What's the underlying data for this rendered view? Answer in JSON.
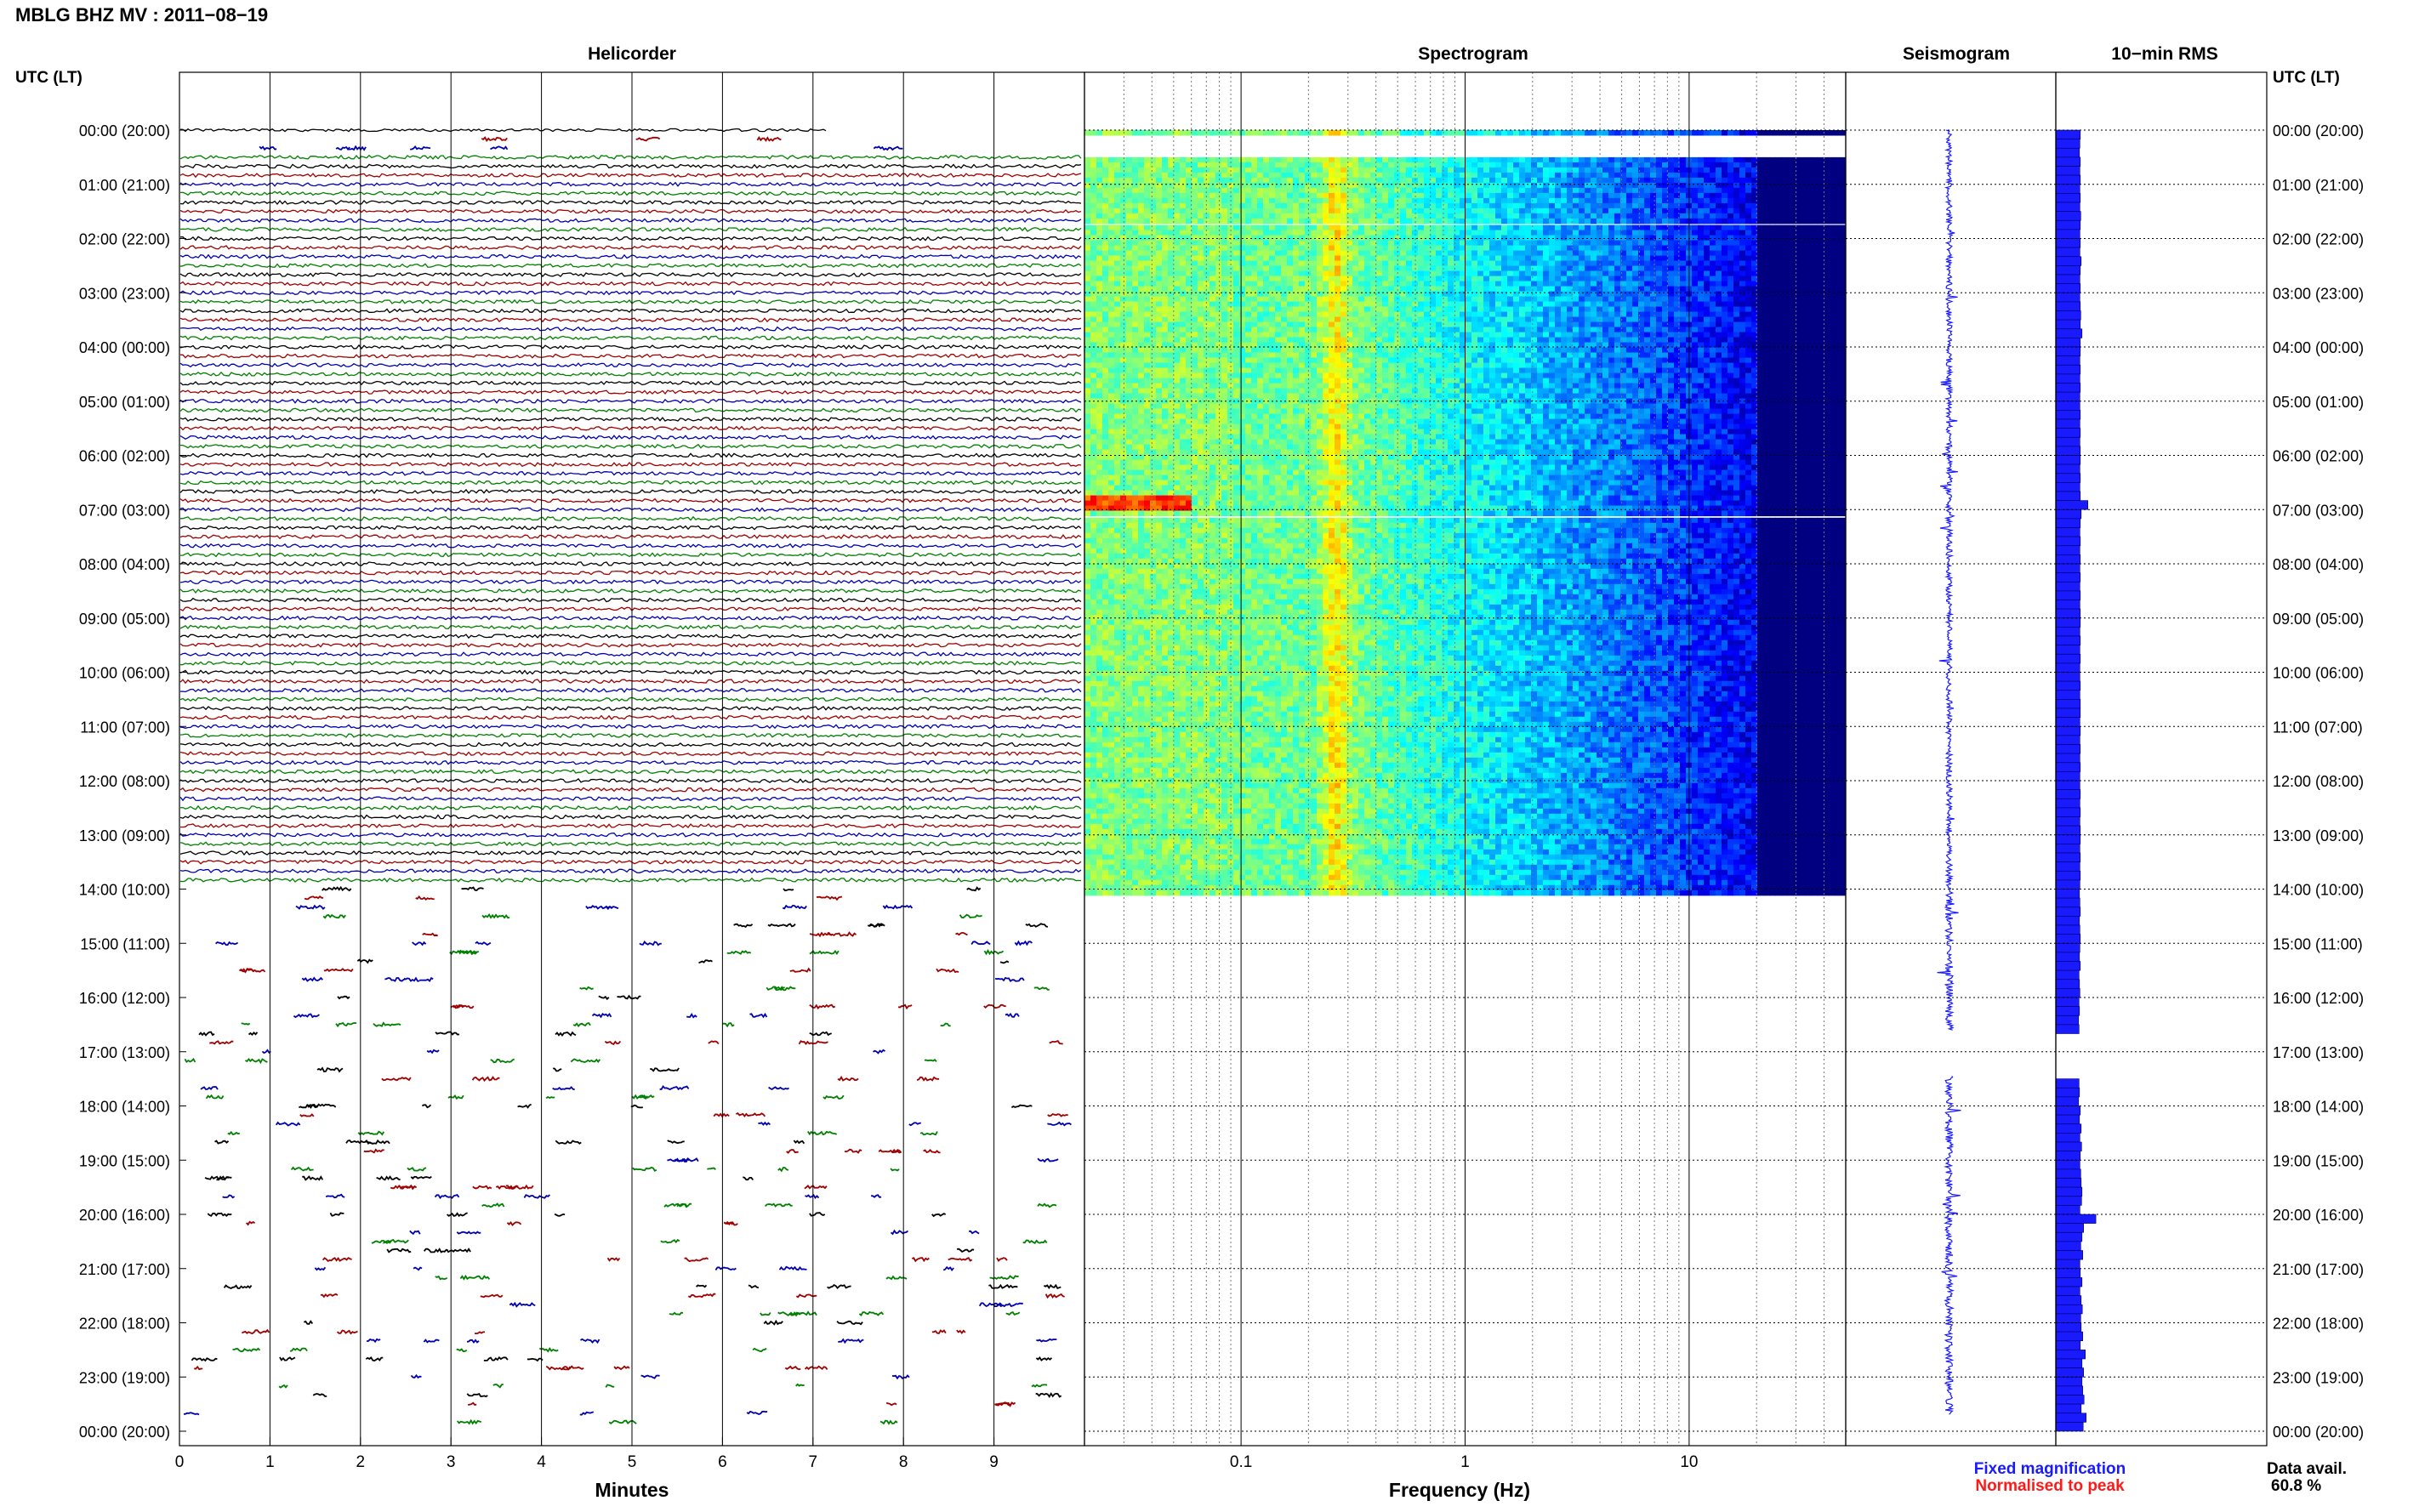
{
  "figure": {
    "title": "MBLG BHZ MV : 2011−08−19",
    "left_axis_header": "UTC (LT)",
    "right_axis_header": "UTC (LT)",
    "panels": {
      "helicorder": "Helicorder",
      "spectrogram": "Spectrogram",
      "seismogram": "Seismogram",
      "rms": "10−min RMS"
    },
    "x_labels": {
      "helicorder": "Minutes",
      "spectrogram": "Frequency (Hz)"
    },
    "legend": {
      "fixed": "Fixed magnification",
      "normalised": "Normalised to peak",
      "fixed_color": "#1a1aff",
      "normalised_color": "#ff1a1a"
    },
    "data_availability": {
      "label": "Data avail.",
      "value": "60.8 %"
    }
  },
  "chart_data": [
    {
      "type": "line",
      "panel": "Helicorder",
      "xlabel": "Minutes",
      "x_ticks": [
        "0",
        "1",
        "2",
        "3",
        "4",
        "5",
        "6",
        "7",
        "8",
        "9"
      ],
      "xlim": [
        0,
        10
      ],
      "rows_per_hour": 6,
      "trace_colors": [
        "#000000",
        "#a00000",
        "#0000b0",
        "#008000"
      ],
      "continuous_data_hours_utc": [
        0.0,
        14.0
      ],
      "gap_hours_utc": [
        [
          0.0,
          0.5
        ],
        [
          14.0,
          24.0
        ]
      ]
    },
    {
      "type": "heatmap",
      "panel": "Spectrogram",
      "xlabel": "Frequency (Hz)",
      "x_scale": "log",
      "x_ticks": [
        "0.1",
        "1",
        "10"
      ],
      "xlim": [
        0.02,
        50
      ],
      "colormap": "jet",
      "data_hours_utc": [
        [
          0.0,
          0.05
        ],
        [
          0.5,
          1.65
        ],
        [
          1.75,
          7.05
        ],
        [
          7.15,
          14.05
        ]
      ],
      "dominant_band_hz": [
        0.22,
        0.32
      ],
      "low_frequency_event_hour_utc": 6.85
    },
    {
      "type": "line",
      "panel": "Seismogram",
      "color": "#1a1aff",
      "data_hours_utc": [
        [
          0.0,
          16.6
        ],
        [
          17.45,
          23.7
        ]
      ]
    },
    {
      "type": "bar",
      "panel": "10-min RMS",
      "color": "#1a1aff",
      "bin_minutes": 10,
      "relative_values_by_hour": [
        {
          "hour": 0,
          "values": [
            0.58,
            0.57,
            0.56,
            0.58,
            0.57,
            0.58
          ]
        },
        {
          "hour": 1,
          "values": [
            0.57,
            0.58,
            0.57,
            0.59,
            0.58,
            0.57
          ]
        },
        {
          "hour": 2,
          "values": [
            0.58,
            0.57,
            0.6,
            0.58,
            0.57,
            0.58
          ]
        },
        {
          "hour": 3,
          "values": [
            0.57,
            0.58,
            0.59,
            0.58,
            0.62,
            0.58
          ]
        },
        {
          "hour": 4,
          "values": [
            0.58,
            0.57,
            0.58,
            0.57,
            0.58,
            0.57
          ]
        },
        {
          "hour": 5,
          "values": [
            0.57,
            0.58,
            0.57,
            0.58,
            0.57,
            0.58
          ]
        },
        {
          "hour": 6,
          "values": [
            0.58,
            0.57,
            0.58,
            0.57,
            0.58,
            0.76
          ]
        },
        {
          "hour": 7,
          "values": [
            0.6,
            0.58,
            0.57,
            0.58,
            0.57,
            0.58
          ]
        },
        {
          "hour": 8,
          "values": [
            0.57,
            0.58,
            0.57,
            0.58,
            0.57,
            0.58
          ]
        },
        {
          "hour": 9,
          "values": [
            0.58,
            0.57,
            0.58,
            0.57,
            0.58,
            0.57
          ]
        },
        {
          "hour": 10,
          "values": [
            0.57,
            0.58,
            0.57,
            0.58,
            0.58,
            0.57
          ]
        },
        {
          "hour": 11,
          "values": [
            0.58,
            0.57,
            0.58,
            0.57,
            0.58,
            0.57
          ]
        },
        {
          "hour": 12,
          "values": [
            0.57,
            0.58,
            0.57,
            0.58,
            0.57,
            0.58
          ]
        },
        {
          "hour": 13,
          "values": [
            0.58,
            0.57,
            0.58,
            0.57,
            0.58,
            0.57
          ]
        },
        {
          "hour": 14,
          "values": [
            0.56,
            0.57,
            0.58,
            0.56,
            0.57,
            0.58
          ]
        },
        {
          "hour": 15,
          "values": [
            0.57,
            0.56,
            0.58,
            0.55,
            0.56,
            0.57
          ]
        },
        {
          "hour": 16,
          "values": [
            0.55,
            0.56,
            0.54,
            0.55,
            null,
            null
          ]
        },
        {
          "hour": 17,
          "values": [
            null,
            null,
            null,
            0.55,
            0.56,
            0.54
          ]
        },
        {
          "hour": 18,
          "values": [
            0.58,
            0.56,
            0.6,
            0.57,
            0.61,
            0.58
          ]
        },
        {
          "hour": 19,
          "values": [
            0.57,
            0.59,
            0.6,
            0.62,
            0.61,
            0.57
          ]
        },
        {
          "hour": 20,
          "values": [
            0.95,
            0.66,
            0.62,
            0.59,
            0.64,
            0.57
          ]
        },
        {
          "hour": 21,
          "values": [
            0.58,
            0.62,
            0.57,
            0.6,
            0.63,
            0.59
          ]
        },
        {
          "hour": 22,
          "values": [
            0.6,
            0.64,
            0.58,
            0.7,
            0.62,
            0.66
          ]
        },
        {
          "hour": 23,
          "values": [
            0.62,
            0.64,
            0.67,
            0.6,
            0.72,
            0.65
          ]
        }
      ]
    }
  ],
  "time_axis": {
    "labels": [
      "00:00 (20:00)",
      "01:00 (21:00)",
      "02:00 (22:00)",
      "03:00 (23:00)",
      "04:00 (00:00)",
      "05:00 (01:00)",
      "06:00 (02:00)",
      "07:00 (03:00)",
      "08:00 (04:00)",
      "09:00 (05:00)",
      "10:00 (06:00)",
      "11:00 (07:00)",
      "12:00 (08:00)",
      "13:00 (09:00)",
      "14:00 (10:00)",
      "15:00 (11:00)",
      "16:00 (12:00)",
      "17:00 (13:00)",
      "18:00 (14:00)",
      "19:00 (15:00)",
      "20:00 (16:00)",
      "21:00 (17:00)",
      "22:00 (18:00)",
      "23:00 (19:00)",
      "00:00 (20:00)"
    ]
  }
}
